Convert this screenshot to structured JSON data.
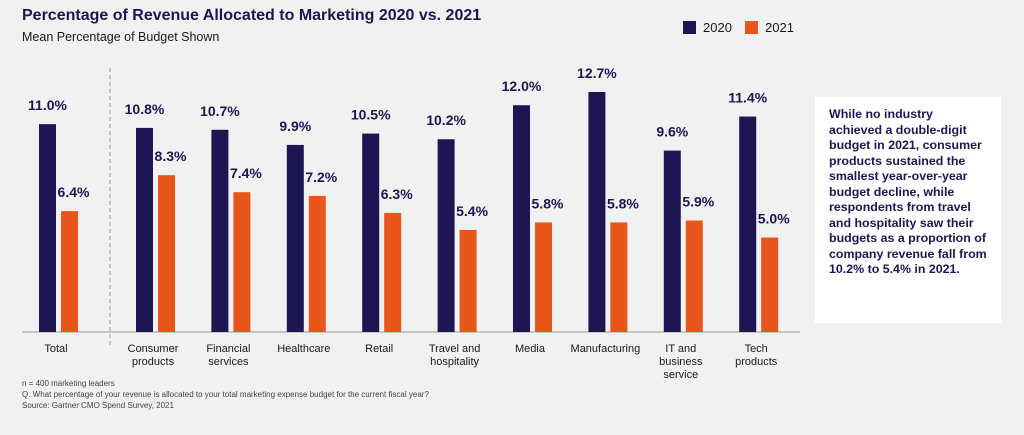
{
  "chart_data": {
    "type": "bar",
    "title": "Percentage of Revenue Allocated to Marketing 2020 vs. 2021",
    "subtitle": "Mean Percentage of Budget Shown",
    "categories": [
      "Total",
      "Consumer\nproducts",
      "Financial\nservices",
      "Healthcare",
      "Retail",
      "Travel and\nhospitality",
      "Media",
      "Manufacturing",
      "IT and\nbusiness\nservice",
      "Tech\nproducts"
    ],
    "series": [
      {
        "name": "2020",
        "color": "#1e1652",
        "values": [
          11.0,
          10.8,
          10.7,
          9.9,
          10.5,
          10.2,
          12.0,
          12.7,
          9.6,
          11.4
        ],
        "value_labels": [
          "11.0%",
          "10.8%",
          "10.7%",
          "9.9%",
          "10.5%",
          "10.2%",
          "12.0%",
          "12.7%",
          "9.6%",
          "11.4%"
        ]
      },
      {
        "name": "2021",
        "color": "#e8561c",
        "values": [
          6.4,
          8.3,
          7.4,
          7.2,
          6.3,
          5.4,
          5.8,
          5.8,
          5.9,
          5.0
        ],
        "value_labels": [
          "6.4%",
          "8.3%",
          "7.4%",
          "7.2%",
          "6.3%",
          "5.4%",
          "5.8%",
          "5.8%",
          "5.9%",
          "5.0%"
        ]
      }
    ],
    "annotation": "While no industry achieved a double-digit budget in 2021, consumer products sustained the smallest year-over-year budget decline, while respondents from travel and hospitality saw their budgets as a proportion of company revenue fall from 10.2% to 5.4% in 2021.",
    "footnotes": [
      "n = 400 marketing leaders",
      "Q. What percentage of your revenue is allocated to your total marketing expense budget for the current fiscal year?",
      "Source: Gartner CMO Spend Survey, 2021"
    ]
  }
}
